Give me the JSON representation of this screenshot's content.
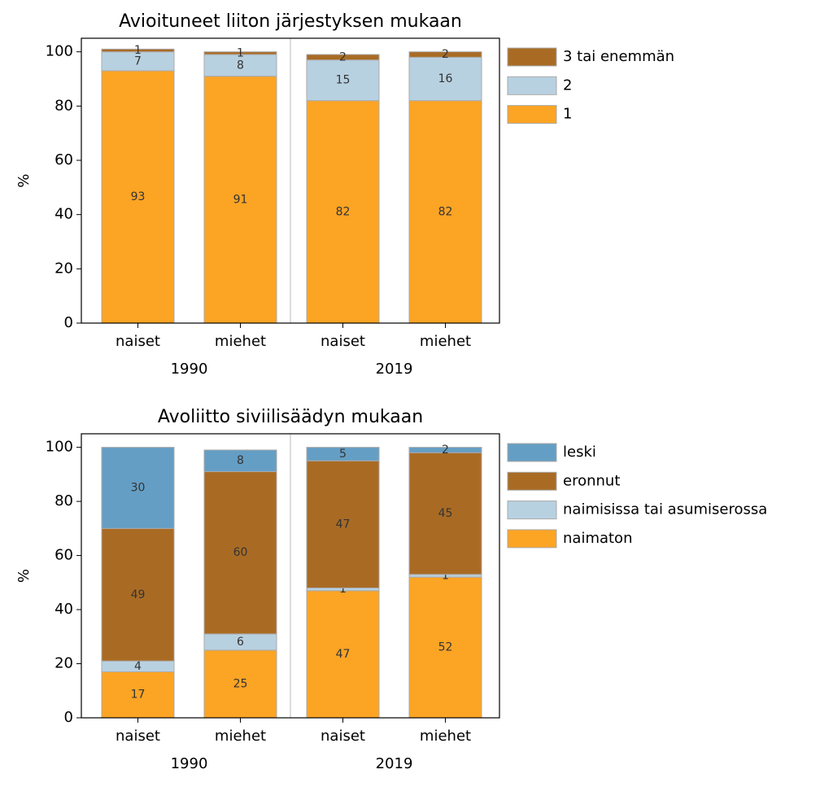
{
  "chart_data": [
    {
      "type": "bar",
      "stacked": true,
      "title": "Avioituneet liiton järjestyksen mukaan",
      "ylabel": "%",
      "categories": [
        "naiset",
        "miehet",
        "naiset",
        "miehet"
      ],
      "group_labels": [
        "1990",
        "2019"
      ],
      "series": [
        {
          "name": "1",
          "color": "#fca424",
          "values": [
            93,
            91,
            82,
            82
          ]
        },
        {
          "name": "2",
          "color": "#b8d1e1",
          "values": [
            7,
            8,
            15,
            16
          ]
        },
        {
          "name": "3 tai enemmän",
          "color": "#a96b24",
          "values": [
            1,
            1,
            2,
            2
          ]
        }
      ],
      "ylim": [
        0,
        105
      ],
      "yticks": [
        0,
        20,
        40,
        60,
        80,
        100
      ],
      "legend": "outside-right"
    },
    {
      "type": "bar",
      "stacked": true,
      "title": "Avoliitto siviilisäädyn mukaan",
      "ylabel": "%",
      "categories": [
        "naiset",
        "miehet",
        "naiset",
        "miehet"
      ],
      "group_labels": [
        "1990",
        "2019"
      ],
      "series": [
        {
          "name": "naimaton",
          "color": "#fca424",
          "values": [
            17,
            25,
            47,
            52
          ]
        },
        {
          "name": "naimisissa tai asumiserossa",
          "color": "#b8d1e1",
          "values": [
            4,
            6,
            1,
            1
          ]
        },
        {
          "name": "eronnut",
          "color": "#a96b24",
          "values": [
            49,
            60,
            47,
            45
          ]
        },
        {
          "name": "leski",
          "color": "#659ec4",
          "values": [
            30,
            8,
            5,
            2
          ]
        }
      ],
      "ylim": [
        0,
        105
      ],
      "yticks": [
        0,
        20,
        40,
        60,
        80,
        100
      ],
      "legend": "outside-right"
    }
  ]
}
